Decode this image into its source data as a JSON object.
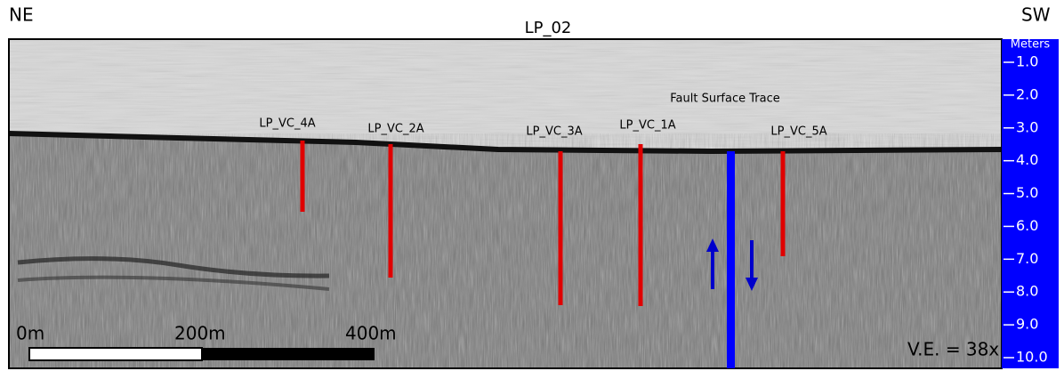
{
  "title": "LP_02",
  "left_label": "NE",
  "right_label": "SW",
  "depth_axis": {
    "unit": "Meters",
    "ticks": [
      "1.0",
      "2.0",
      "3.0",
      "4.0",
      "5.0",
      "6.0",
      "7.0",
      "8.0",
      "9.0",
      "10.0"
    ]
  },
  "cores": [
    "LP_VC_4A",
    "LP_VC_2A",
    "LP_VC_3A",
    "LP_VC_1A",
    "LP_VC_5A"
  ],
  "annotation": "Fault Surface Trace",
  "scale_bar": [
    "0m",
    "200m",
    "400m"
  ],
  "vertical_exaggeration": "V.E. = 38x"
}
